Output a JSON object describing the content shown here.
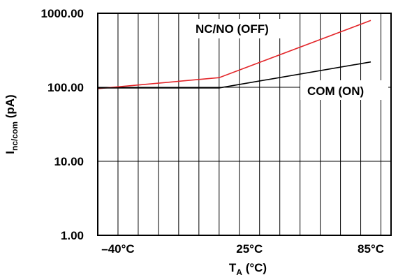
{
  "chart_data": {
    "type": "line",
    "xlabel": {
      "main": "T",
      "sub": "A",
      "unit": " (°C)"
    },
    "ylabel": {
      "main": "I",
      "sub": "nc/com",
      "unit": " (pA)"
    },
    "y_scale": "log",
    "ylim": [
      1,
      1000
    ],
    "xlim": [
      -50,
      95
    ],
    "grid": true,
    "y_ticks": [
      {
        "value": 1,
        "label": "1.00"
      },
      {
        "value": 10,
        "label": "10.00"
      },
      {
        "value": 100,
        "label": "100.00"
      },
      {
        "value": 1000,
        "label": "1000.00"
      }
    ],
    "x_ticks": [
      {
        "value": -40,
        "label": "–40°C"
      },
      {
        "value": 25,
        "label": "25°C"
      },
      {
        "value": 85,
        "label": "85°C"
      }
    ],
    "series": [
      {
        "name": "NC/NO (OFF)",
        "color": "#e3262a",
        "x": [
          -50,
          10,
          85
        ],
        "y": [
          96,
          135,
          800
        ]
      },
      {
        "name": "COM (ON)",
        "color": "#000000",
        "x": [
          -50,
          10,
          85
        ],
        "y": [
          98,
          98,
          220
        ]
      }
    ]
  }
}
